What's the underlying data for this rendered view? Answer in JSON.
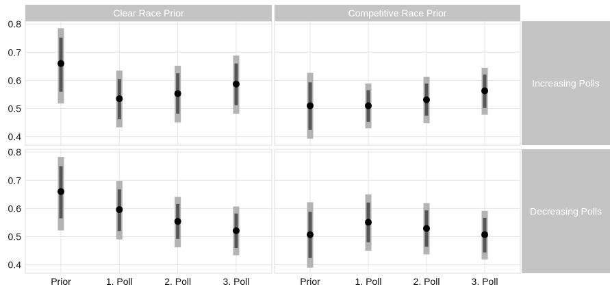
{
  "chart_data": {
    "type": "interval-point",
    "categories": [
      "Prior",
      "1. Poll",
      "2. Poll",
      "3. Poll"
    ],
    "columns": [
      "Clear Race Prior",
      "Competitive Race Prior"
    ],
    "rows": [
      "Increasing Polls",
      "Decreasing Polls"
    ],
    "ylim": [
      0.37,
      0.81
    ],
    "yticks": [
      "0.4",
      "0.5",
      "0.6",
      "0.7",
      "0.8"
    ],
    "grid": true,
    "colors": {
      "strip": "#c4c4c4",
      "outer_interval": "#b3b3b3",
      "inner_interval": "#555555",
      "point": "#000000",
      "grid": "#e6e6e6"
    },
    "panels": [
      {
        "column": "Clear Race Prior",
        "row": "Increasing Polls",
        "points": [
          {
            "x": "Prior",
            "median": 0.66,
            "outer": [
              0.518,
              0.785
            ],
            "inner": [
              0.56,
              0.752
            ]
          },
          {
            "x": "1. Poll",
            "median": 0.535,
            "outer": [
              0.433,
              0.635
            ],
            "inner": [
              0.462,
              0.605
            ]
          },
          {
            "x": "2. Poll",
            "median": 0.553,
            "outer": [
              0.451,
              0.652
            ],
            "inner": [
              0.482,
              0.625
            ]
          },
          {
            "x": "3. Poll",
            "median": 0.587,
            "outer": [
              0.482,
              0.688
            ],
            "inner": [
              0.512,
              0.66
            ]
          }
        ]
      },
      {
        "column": "Competitive Race Prior",
        "row": "Increasing Polls",
        "points": [
          {
            "x": "Prior",
            "median": 0.51,
            "outer": [
              0.393,
              0.627
            ],
            "inner": [
              0.424,
              0.593
            ]
          },
          {
            "x": "1. Poll",
            "median": 0.51,
            "outer": [
              0.43,
              0.589
            ],
            "inner": [
              0.453,
              0.565
            ]
          },
          {
            "x": "2. Poll",
            "median": 0.531,
            "outer": [
              0.448,
              0.613
            ],
            "inner": [
              0.475,
              0.589
            ]
          },
          {
            "x": "3. Poll",
            "median": 0.563,
            "outer": [
              0.478,
              0.645
            ],
            "inner": [
              0.502,
              0.621
            ]
          }
        ]
      },
      {
        "column": "Clear Race Prior",
        "row": "Decreasing Polls",
        "points": [
          {
            "x": "Prior",
            "median": 0.66,
            "outer": [
              0.522,
              0.783
            ],
            "inner": [
              0.565,
              0.75
            ]
          },
          {
            "x": "1. Poll",
            "median": 0.596,
            "outer": [
              0.49,
              0.698
            ],
            "inner": [
              0.52,
              0.668
            ]
          },
          {
            "x": "2. Poll",
            "median": 0.554,
            "outer": [
              0.462,
              0.641
            ],
            "inner": [
              0.492,
              0.616
            ]
          },
          {
            "x": "3. Poll",
            "median": 0.521,
            "outer": [
              0.434,
              0.607
            ],
            "inner": [
              0.46,
              0.582
            ]
          }
        ]
      },
      {
        "column": "Competitive Race Prior",
        "row": "Decreasing Polls",
        "points": [
          {
            "x": "Prior",
            "median": 0.507,
            "outer": [
              0.39,
              0.622
            ],
            "inner": [
              0.424,
              0.588
            ]
          },
          {
            "x": "1. Poll",
            "median": 0.551,
            "outer": [
              0.45,
              0.65
            ],
            "inner": [
              0.48,
              0.621
            ]
          },
          {
            "x": "2. Poll",
            "median": 0.529,
            "outer": [
              0.437,
              0.619
            ],
            "inner": [
              0.464,
              0.593
            ]
          },
          {
            "x": "3. Poll",
            "median": 0.507,
            "outer": [
              0.419,
              0.592
            ],
            "inner": [
              0.444,
              0.567
            ]
          }
        ]
      }
    ]
  }
}
